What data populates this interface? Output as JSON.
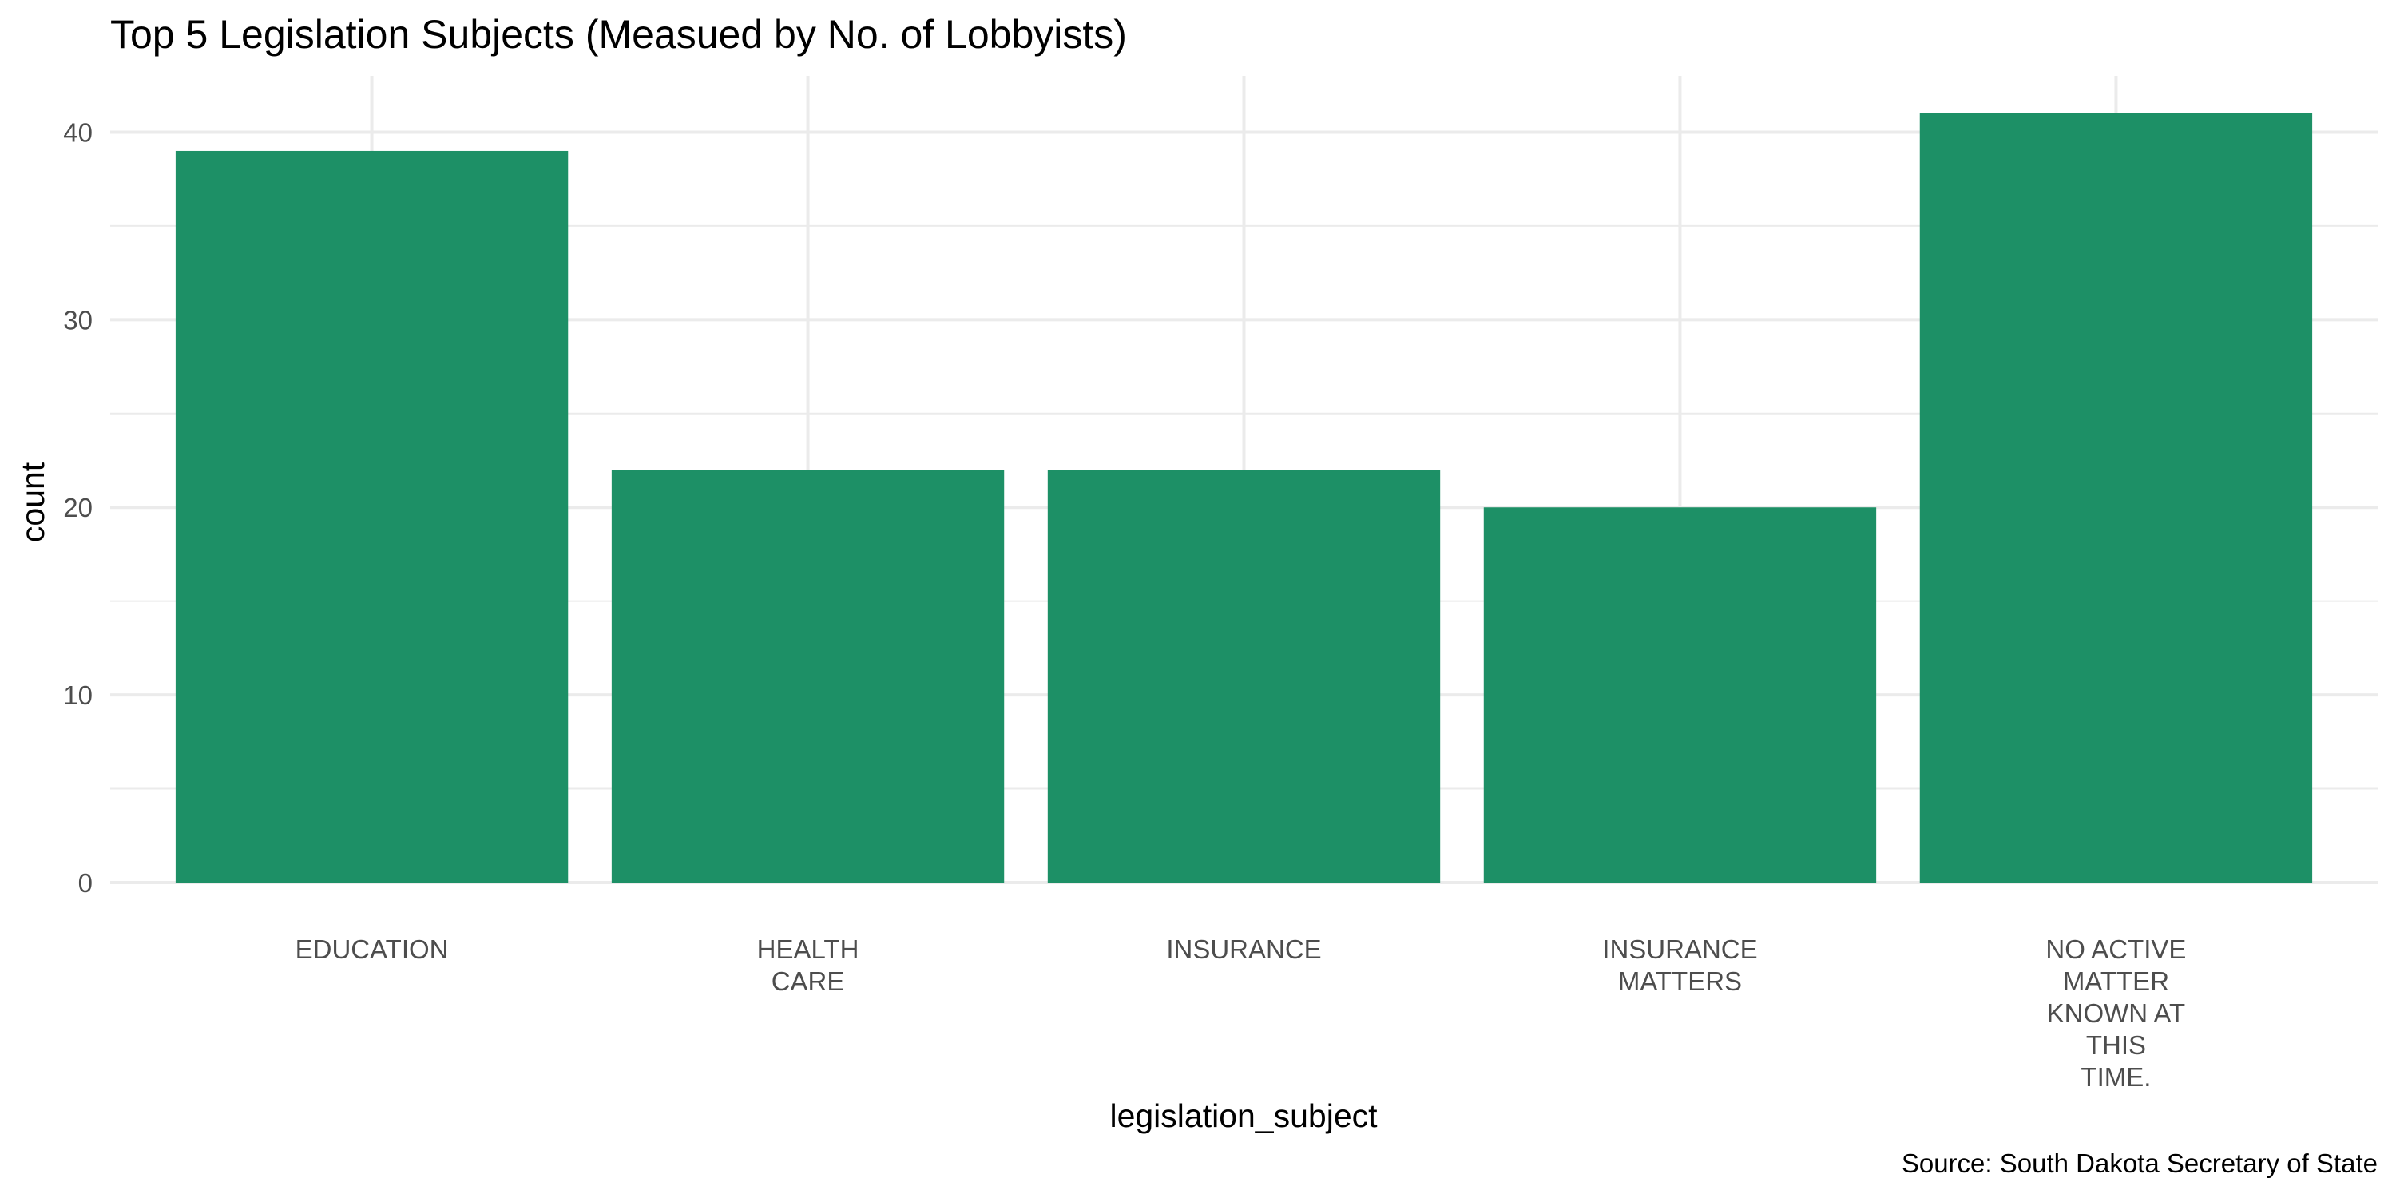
{
  "chart_data": {
    "type": "bar",
    "title": "Top 5 Legislation Subjects (Measued by No. of Lobbyists)",
    "xlabel": "legislation_subject",
    "ylabel": "count",
    "caption": "Source: South Dakota Secretary of State",
    "categories": [
      [
        "EDUCATION"
      ],
      [
        "HEALTH",
        "CARE"
      ],
      [
        "INSURANCE"
      ],
      [
        "INSURANCE",
        "MATTERS"
      ],
      [
        "NO ACTIVE",
        "MATTER",
        "KNOWN AT",
        "THIS",
        "TIME."
      ]
    ],
    "values": [
      39,
      22,
      22,
      20,
      41
    ],
    "ylim": [
      0,
      43
    ],
    "yticks": [
      0,
      10,
      20,
      30,
      40
    ],
    "grid": true,
    "bar_color": "#1d9066",
    "legend": "none"
  }
}
